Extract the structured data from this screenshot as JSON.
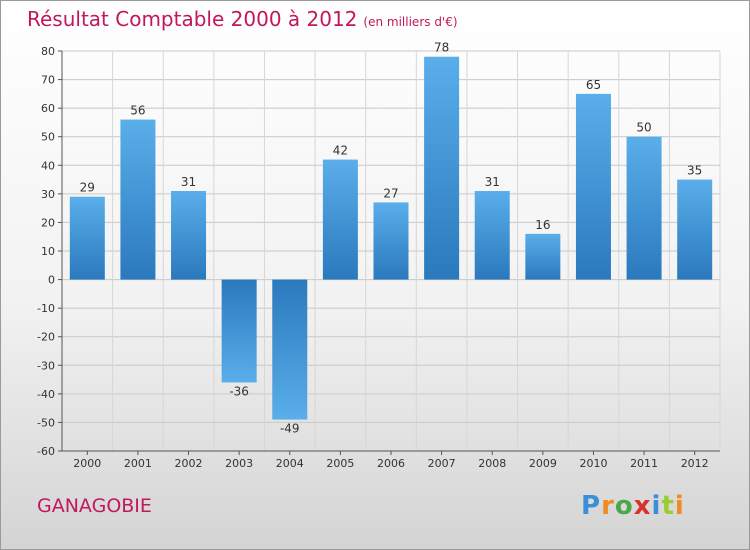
{
  "header": {
    "title": "Résultat Comptable 2000 à 2012",
    "unit": "(en milliers d'€)"
  },
  "footer": {
    "commune": "GANAGOBIE",
    "brand": "Proxiti",
    "brand_letters": [
      "P",
      "r",
      "o",
      "x",
      "i",
      "t",
      "i"
    ],
    "brand_colors": [
      "#3b8fd6",
      "#f08a24",
      "#4aa84a",
      "#d9312b",
      "#3b8fd6",
      "#9acd32",
      "#f08a24"
    ]
  },
  "chart_data": {
    "type": "bar",
    "title": "Résultat Comptable 2000 à 2012",
    "subtitle": "(en milliers d'€)",
    "xlabel": "",
    "ylabel": "",
    "categories": [
      "2000",
      "2001",
      "2002",
      "2003",
      "2004",
      "2005",
      "2006",
      "2007",
      "2008",
      "2009",
      "2010",
      "2011",
      "2012"
    ],
    "values": [
      29,
      56,
      31,
      -36,
      -49,
      42,
      27,
      78,
      31,
      16,
      65,
      50,
      35
    ],
    "ylim": [
      -60,
      80
    ],
    "yticks": [
      80,
      70,
      60,
      50,
      40,
      30,
      20,
      10,
      0,
      -10,
      -20,
      -30,
      -40,
      -50,
      -60
    ],
    "grid": true,
    "bar_color": "#4a9fe0",
    "bar_color_dark": "#2878bd"
  }
}
